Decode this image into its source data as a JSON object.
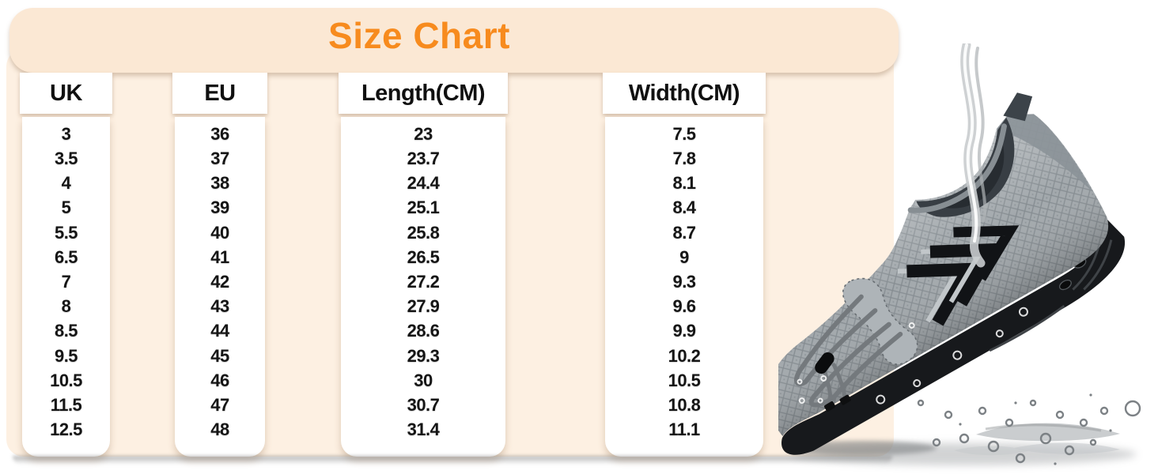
{
  "title": "Size Chart",
  "colors": {
    "accent": "#F78B1E",
    "banner_bg": "#FBE8D4",
    "panel_bg": "#FDF0E2",
    "column_bg": "#FFFFFF",
    "text": "#151515"
  },
  "size_table": {
    "columns": [
      {
        "label": "UK",
        "values": [
          "3",
          "3.5",
          "4",
          "5",
          "5.5",
          "6.5",
          "7",
          "8",
          "8.5",
          "9.5",
          "10.5",
          "11.5",
          "12.5"
        ]
      },
      {
        "label": "EU",
        "values": [
          "36",
          "37",
          "38",
          "39",
          "40",
          "41",
          "42",
          "43",
          "44",
          "45",
          "46",
          "47",
          "48"
        ]
      },
      {
        "label": "Length(CM)",
        "values": [
          "23",
          "23.7",
          "24.4",
          "25.1",
          "25.8",
          "26.5",
          "27.2",
          "27.9",
          "28.6",
          "29.3",
          "30",
          "30.7",
          "31.4"
        ]
      },
      {
        "label": "Width(CM)",
        "values": [
          "7.5",
          "7.8",
          "8.1",
          "8.4",
          "8.7",
          "9",
          "9.3",
          "9.6",
          "9.9",
          "10.2",
          "10.5",
          "10.8",
          "11.1"
        ]
      }
    ]
  },
  "product_image": {
    "name": "grey-water-shoe-with-water-splashes"
  },
  "chart_data": {
    "type": "table",
    "title": "Size Chart",
    "columns": [
      "UK",
      "EU",
      "Length(CM)",
      "Width(CM)"
    ],
    "rows": [
      [
        "3",
        "36",
        "23",
        "7.5"
      ],
      [
        "3.5",
        "37",
        "23.7",
        "7.8"
      ],
      [
        "4",
        "38",
        "24.4",
        "8.1"
      ],
      [
        "5",
        "39",
        "25.1",
        "8.4"
      ],
      [
        "5.5",
        "40",
        "25.8",
        "8.7"
      ],
      [
        "6.5",
        "41",
        "26.5",
        "9"
      ],
      [
        "7",
        "42",
        "27.2",
        "9.3"
      ],
      [
        "8",
        "43",
        "27.9",
        "9.6"
      ],
      [
        "8.5",
        "44",
        "28.6",
        "9.9"
      ],
      [
        "9.5",
        "45",
        "29.3",
        "10.2"
      ],
      [
        "10.5",
        "46",
        "30",
        "10.5"
      ],
      [
        "11.5",
        "47",
        "30.7",
        "10.8"
      ],
      [
        "12.5",
        "48",
        "31.4",
        "11.1"
      ]
    ]
  }
}
